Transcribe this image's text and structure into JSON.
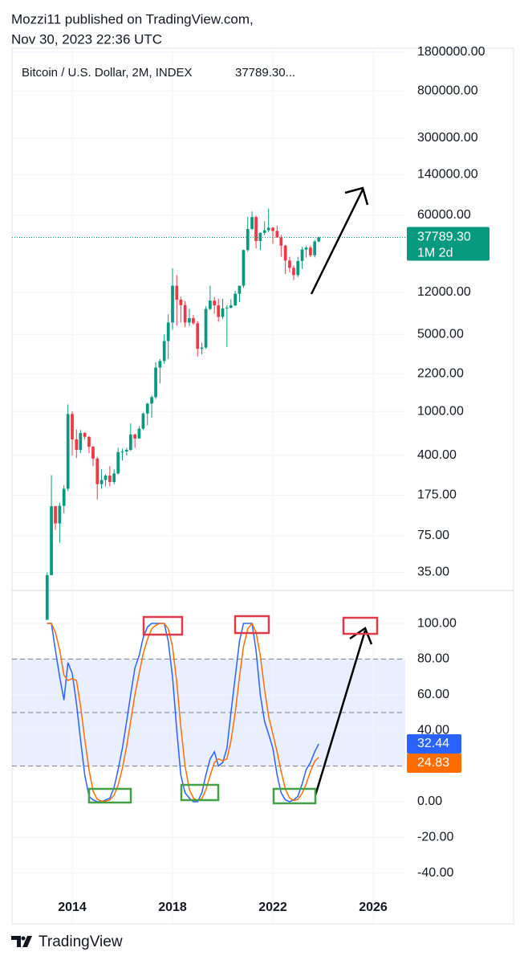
{
  "header": {
    "publisher": "Mozzi11 published on TradingView.com,",
    "date": "Nov 30, 2023 22:36 UTC"
  },
  "footer": {
    "brand": "TradingView"
  },
  "chart_data": [
    {
      "type": "candlestick",
      "title": "Bitcoin / U.S. Dollar, 2M, INDEX",
      "legend_value": "37789.30...",
      "x": [
        2013.0,
        2013.17,
        2013.33,
        2013.5,
        2013.67,
        2013.83,
        2014.0,
        2014.17,
        2014.33,
        2014.5,
        2014.67,
        2014.83,
        2015.0,
        2015.17,
        2015.33,
        2015.5,
        2015.67,
        2015.83,
        2016.0,
        2016.17,
        2016.33,
        2016.5,
        2016.67,
        2016.83,
        2017.0,
        2017.17,
        2017.33,
        2017.5,
        2017.67,
        2017.83,
        2018.0,
        2018.17,
        2018.33,
        2018.5,
        2018.67,
        2018.83,
        2019.0,
        2019.17,
        2019.33,
        2019.5,
        2019.67,
        2019.83,
        2020.0,
        2020.17,
        2020.33,
        2020.5,
        2020.67,
        2020.83,
        2021.0,
        2021.17,
        2021.33,
        2021.5,
        2021.67,
        2021.83,
        2022.0,
        2022.17,
        2022.33,
        2022.5,
        2022.67,
        2022.83,
        2023.0,
        2023.17,
        2023.33,
        2023.5,
        2023.67,
        2023.83
      ],
      "open": [
        13,
        33,
        139,
        97,
        140,
        200,
        950,
        560,
        450,
        640,
        590,
        480,
        375,
        220,
        240,
        263,
        230,
        275,
        430,
        435,
        450,
        620,
        570,
        700,
        960,
        1180,
        1350,
        2500,
        2870,
        4350,
        6400,
        13800,
        10300,
        9200,
        6400,
        7000,
        6300,
        3700,
        3800,
        8500,
        10100,
        9150,
        7200,
        8600,
        8700,
        9150,
        11650,
        13800,
        29000,
        45000,
        57700,
        35000,
        41500,
        43800,
        46200,
        43200,
        37700,
        31800,
        23300,
        20000,
        17200,
        23100,
        29300,
        30500,
        26000,
        34700
      ],
      "high": [
        35,
        266,
        140,
        150,
        215,
        1160,
        1000,
        690,
        680,
        650,
        600,
        490,
        390,
        300,
        270,
        320,
        300,
        470,
        460,
        470,
        780,
        630,
        740,
        980,
        1200,
        1400,
        2800,
        3000,
        5000,
        7600,
        19800,
        17200,
        11000,
        10000,
        8500,
        7500,
        6600,
        4200,
        9000,
        13800,
        10900,
        10500,
        10500,
        9200,
        10400,
        12400,
        12500,
        29300,
        58000,
        64800,
        59500,
        42000,
        52900,
        69000,
        47000,
        48200,
        39800,
        32400,
        25200,
        21000,
        25200,
        31000,
        31500,
        31800,
        35900,
        38400
      ],
      "low": [
        13,
        33,
        85,
        65,
        120,
        190,
        400,
        380,
        420,
        560,
        420,
        320,
        160,
        200,
        210,
        210,
        220,
        270,
        360,
        400,
        440,
        470,
        570,
        680,
        750,
        880,
        1300,
        1800,
        2700,
        3000,
        5500,
        6000,
        6400,
        5800,
        5900,
        6100,
        3150,
        3300,
        3700,
        8300,
        7700,
        6500,
        6900,
        3850,
        8600,
        9000,
        9800,
        13200,
        28000,
        44000,
        30000,
        29000,
        39500,
        42000,
        33000,
        37500,
        25300,
        17600,
        18200,
        15500,
        16500,
        19600,
        24800,
        25000,
        24900,
        34100
      ],
      "close": [
        33,
        139,
        97,
        140,
        200,
        950,
        560,
        450,
        640,
        590,
        480,
        375,
        220,
        240,
        263,
        230,
        275,
        430,
        435,
        450,
        620,
        570,
        700,
        960,
        1180,
        1350,
        2500,
        2870,
        4350,
        6400,
        13800,
        10300,
        9200,
        6400,
        7000,
        6300,
        3700,
        3800,
        8500,
        10100,
        9150,
        7200,
        8600,
        8700,
        9150,
        11650,
        13800,
        29000,
        45000,
        57700,
        35000,
        41500,
        43800,
        46200,
        43200,
        37700,
        31800,
        23300,
        20000,
        17200,
        23100,
        29300,
        30500,
        26000,
        34700,
        37789.3
      ],
      "up_color": "#089981",
      "down_color": "#f23645",
      "log_scale": true,
      "ylim": [
        24,
        1950000
      ],
      "xlim": [
        2011.6,
        2027.28
      ],
      "xticks": [
        2014,
        2018,
        2022,
        2026
      ],
      "grid": true,
      "yticks": [
        {
          "value": 1800000,
          "label": "1800000.00"
        },
        {
          "value": 800000,
          "label": "800000.00"
        },
        {
          "value": 300000,
          "label": "300000.00"
        },
        {
          "value": 140000,
          "label": "140000.00"
        },
        {
          "value": 60000,
          "label": "60000.00"
        },
        {
          "value": 12000,
          "label": "12000.00"
        },
        {
          "value": 5000,
          "label": "5000.00"
        },
        {
          "value": 2200,
          "label": "2200.00"
        },
        {
          "value": 1000,
          "label": "1000.00"
        },
        {
          "value": 400,
          "label": "400.00"
        },
        {
          "value": 175,
          "label": "175.00"
        },
        {
          "value": 75,
          "label": "75.00"
        },
        {
          "value": 35,
          "label": "35.00"
        }
      ],
      "last_price": {
        "value": 37789.3,
        "label": "37789.30"
      },
      "countdown": "1M 2d"
    },
    {
      "type": "line",
      "x": [
        2013.0,
        2013.17,
        2013.33,
        2013.5,
        2013.67,
        2013.83,
        2014.0,
        2014.17,
        2014.33,
        2014.5,
        2014.67,
        2014.83,
        2015.0,
        2015.17,
        2015.33,
        2015.5,
        2015.67,
        2015.83,
        2016.0,
        2016.17,
        2016.33,
        2016.5,
        2016.67,
        2016.83,
        2017.0,
        2017.17,
        2017.33,
        2017.5,
        2017.67,
        2017.83,
        2018.0,
        2018.17,
        2018.33,
        2018.5,
        2018.67,
        2018.83,
        2019.0,
        2019.17,
        2019.33,
        2019.5,
        2019.67,
        2019.83,
        2020.0,
        2020.17,
        2020.33,
        2020.5,
        2020.67,
        2020.83,
        2021.0,
        2021.17,
        2021.33,
        2021.5,
        2021.67,
        2021.83,
        2022.0,
        2022.17,
        2022.33,
        2022.5,
        2022.67,
        2022.83,
        2023.0,
        2023.17,
        2023.33,
        2023.5,
        2023.67,
        2023.83
      ],
      "series": [
        {
          "color": "#2962ff",
          "values": [
            100,
            100,
            85,
            70,
            57,
            78,
            72,
            55,
            35,
            15,
            3,
            1,
            0,
            0,
            1,
            2,
            8,
            18,
            30,
            45,
            60,
            75,
            82,
            92,
            98,
            100,
            100,
            100,
            100,
            90,
            70,
            40,
            15,
            5,
            2,
            0,
            0,
            5,
            15,
            24,
            28,
            20,
            22,
            30,
            50,
            70,
            90,
            100,
            100,
            100,
            85,
            60,
            45,
            38,
            30,
            15,
            5,
            1,
            0,
            1,
            3,
            10,
            18,
            22,
            28,
            32.44
          ]
        },
        {
          "color": "#ff6d00",
          "values": [
            100,
            100,
            95,
            85,
            71,
            68,
            69,
            68,
            54,
            35,
            18,
            6,
            1.3,
            0.3,
            0.3,
            1,
            3.7,
            9.3,
            18.7,
            31,
            45,
            60,
            72,
            83,
            91,
            97,
            99,
            100,
            100,
            97,
            87,
            67,
            42,
            20,
            7,
            2,
            0.7,
            1.7,
            6.7,
            14.7,
            22,
            24,
            23,
            24,
            34,
            50,
            70,
            87,
            97,
            100,
            95,
            82,
            63,
            48,
            38,
            28,
            17,
            7,
            2,
            0.7,
            1.3,
            4.7,
            10,
            17,
            22.7,
            24.83
          ]
        }
      ],
      "ylim": [
        -55,
        118.5
      ],
      "xlim": [
        2011.6,
        2027.28
      ],
      "xticks": [
        2014,
        2018,
        2022,
        2026
      ],
      "grid": true,
      "band": [
        20,
        80
      ],
      "levels": [
        80,
        50,
        20
      ],
      "yticks": [
        {
          "value": 100,
          "label": "100.00"
        },
        {
          "value": 80,
          "label": "80.00"
        },
        {
          "value": 60,
          "label": "60.00"
        },
        {
          "value": 40,
          "label": "40.00"
        },
        {
          "value": 0,
          "label": "0.00"
        },
        {
          "value": -20,
          "label": "-20.00"
        },
        {
          "value": -40,
          "label": "-40.00"
        }
      ]
    }
  ]
}
